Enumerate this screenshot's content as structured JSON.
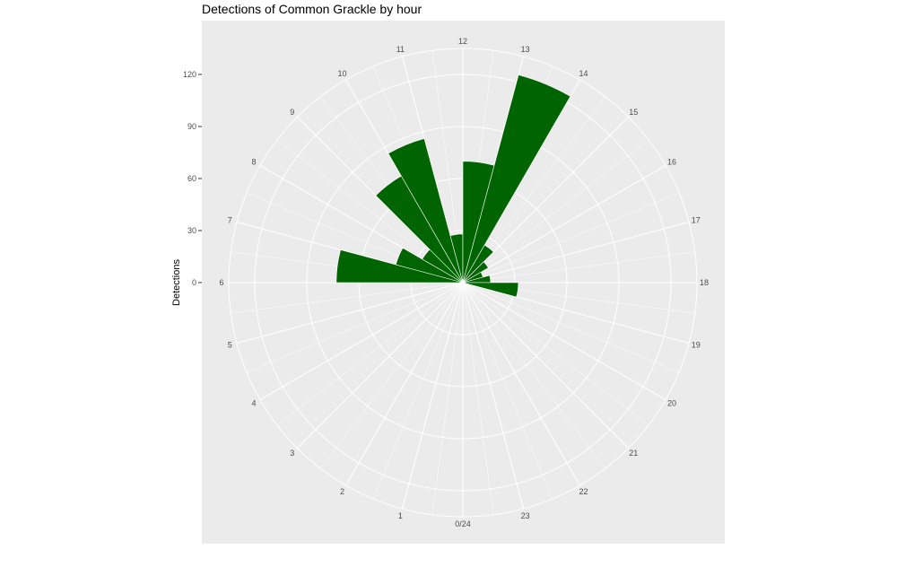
{
  "chart_data": {
    "type": "bar",
    "coordinate_system": "polar",
    "title": "Detections of Common Grackle by hour",
    "ylabel": "Detections",
    "ylim": [
      0,
      135
    ],
    "y_ticks": [
      0,
      30,
      60,
      90,
      120
    ],
    "y_tick_labels": [
      "0",
      "30",
      "60",
      "90",
      "120"
    ],
    "hour_labels": [
      "0/24",
      "1",
      "2",
      "3",
      "4",
      "5",
      "6",
      "7",
      "8",
      "9",
      "10",
      "11",
      "12",
      "13",
      "14",
      "15",
      "16",
      "17",
      "18",
      "19",
      "20",
      "21",
      "22",
      "23"
    ],
    "categories": [
      0,
      1,
      2,
      3,
      4,
      5,
      6,
      7,
      8,
      9,
      10,
      11,
      12,
      13,
      14,
      15,
      16,
      17,
      18,
      19,
      20,
      21,
      22,
      23
    ],
    "values": [
      0,
      0,
      0,
      0,
      0,
      0,
      73,
      40,
      27,
      71,
      86,
      28,
      70,
      124,
      25,
      17,
      12,
      16,
      32,
      0,
      0,
      0,
      0,
      0
    ],
    "bar_color": "#006400",
    "panel_color": "#ebebeb",
    "grid_color": "#ffffff",
    "grid": true
  }
}
